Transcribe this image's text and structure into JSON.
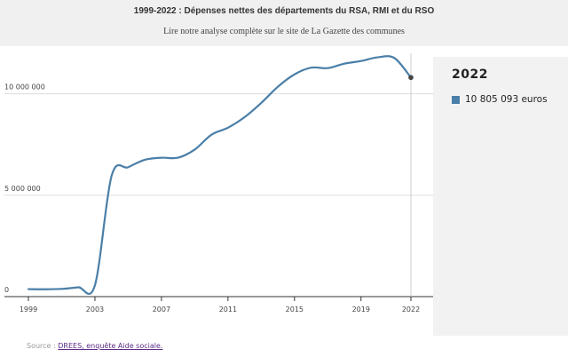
{
  "header": {
    "title": "1999-2022 : Dépenses nettes des départements du RSA, RMI et du RSO",
    "subtitle": "Lire notre analyse complète sur le site de La Gazette des communes"
  },
  "tooltip": {
    "year": "2022",
    "value_label": "10 805 093 euros"
  },
  "source": {
    "prefix": "Source : ",
    "link_text": "DREES, enquête Aide sociale."
  },
  "colors": {
    "line": "#4a7fa8",
    "marker": "#444444",
    "panel_bg": "#f2f2f2",
    "header_bg": "#f0f0f0"
  },
  "chart_data": {
    "type": "line",
    "x": [
      1999,
      2000,
      2001,
      2002,
      2003,
      2004,
      2005,
      2006,
      2007,
      2008,
      2009,
      2010,
      2011,
      2012,
      2013,
      2014,
      2015,
      2016,
      2017,
      2018,
      2019,
      2020,
      2021,
      2022
    ],
    "series": [
      {
        "values": [
          370000,
          360000,
          380000,
          460000,
          560000,
          5950000,
          6380000,
          6750000,
          6850000,
          6850000,
          7250000,
          7980000,
          8330000,
          8850000,
          9550000,
          10350000,
          10960000,
          11290000,
          11270000,
          11490000,
          11620000,
          11800000,
          11770000,
          10805093
        ]
      }
    ],
    "y_ticks": [
      0,
      5000000,
      10000000
    ],
    "y_tick_labels": [
      "0",
      "5 000 000",
      "10 000 000"
    ],
    "x_ticks": [
      1999,
      2003,
      2007,
      2011,
      2015,
      2019,
      2022
    ],
    "x_tick_labels": [
      "1999",
      "2003",
      "2007",
      "2011",
      "2015",
      "2019",
      "2022"
    ],
    "xlim": [
      1999,
      2022
    ],
    "ylim": [
      0,
      12000000
    ],
    "grid": "horizontal",
    "highlight_x": 2022,
    "legend": "right-panel"
  }
}
